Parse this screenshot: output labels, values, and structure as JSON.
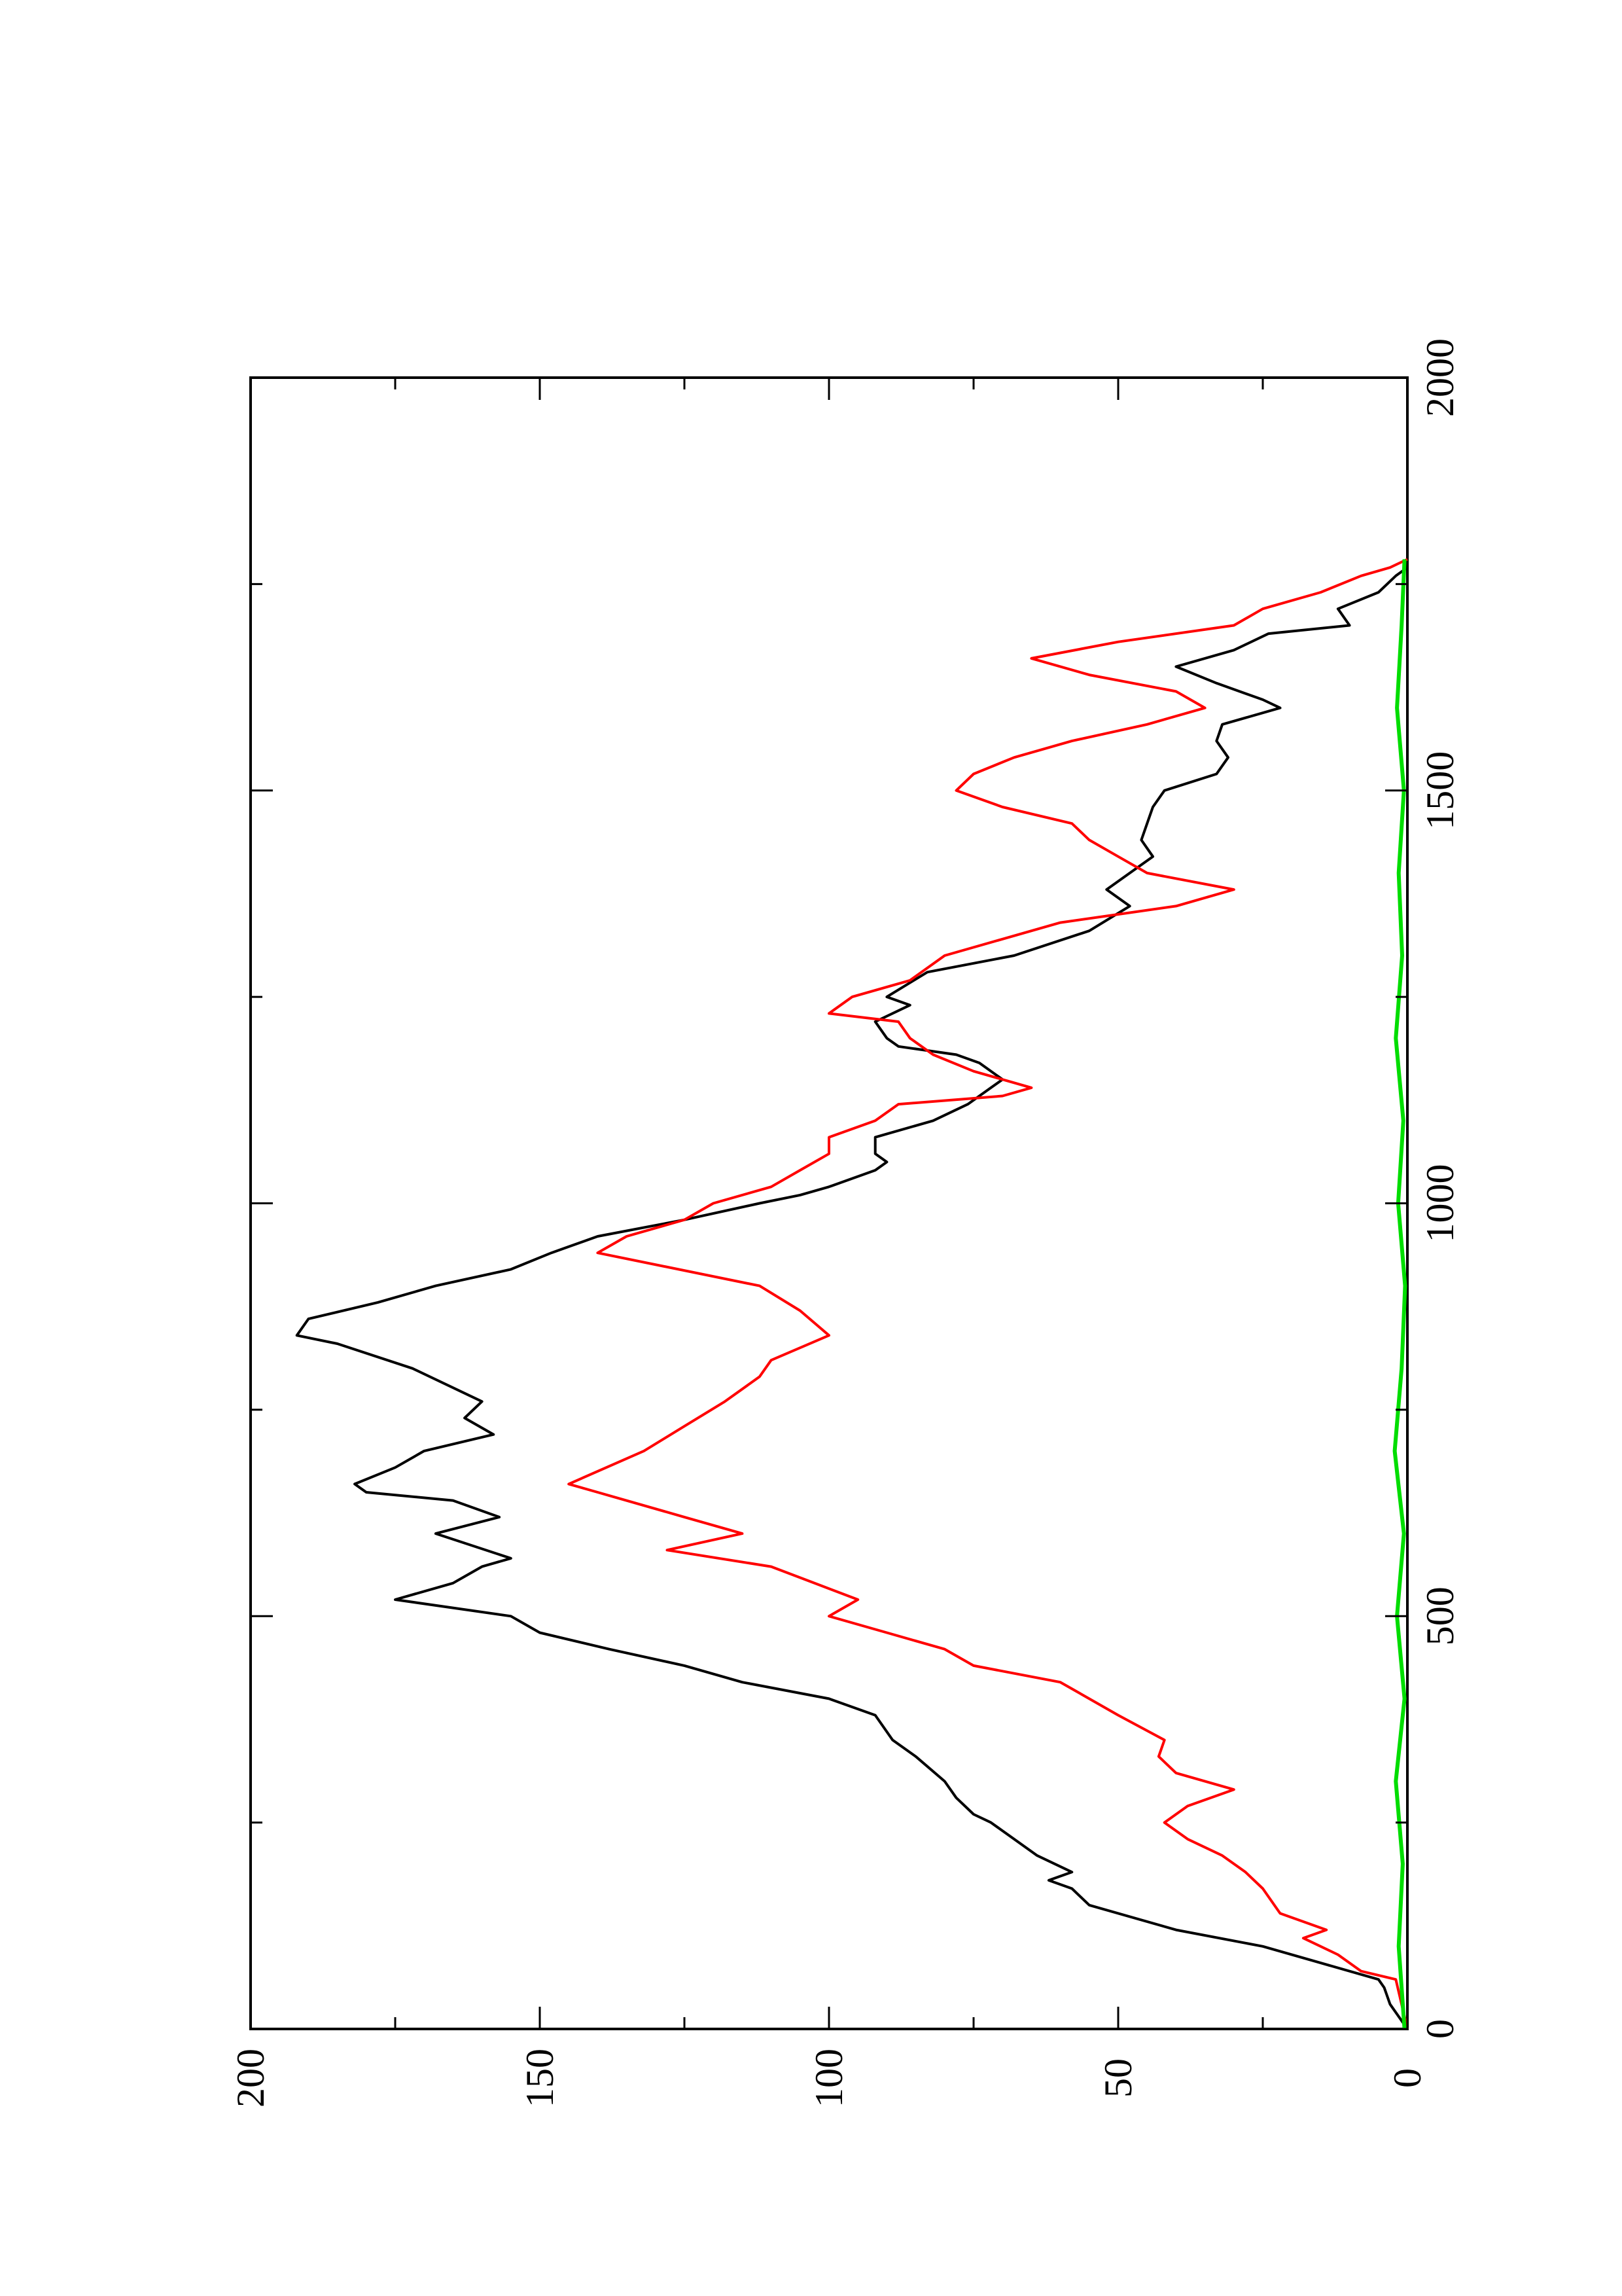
{
  "chart_data": {
    "type": "line",
    "orientation": "rotated-90-ccw",
    "title": "",
    "xlabel": "",
    "ylabel": "",
    "xlim": [
      0,
      2000
    ],
    "ylim": [
      0,
      200
    ],
    "x_ticks": [
      "0",
      "500",
      "1000",
      "1500",
      "2000"
    ],
    "y_ticks": [
      "0",
      "50",
      "100",
      "150",
      "200"
    ],
    "x_tick_values": [
      0,
      500,
      1000,
      1500,
      2000
    ],
    "y_tick_values": [
      0,
      50,
      100,
      150,
      200
    ],
    "x_minor_ticks": [
      250,
      750,
      1250,
      1750
    ],
    "y_minor_ticks": [
      25,
      75,
      125,
      175
    ],
    "grid": false,
    "legend": "none",
    "series": [
      {
        "color": "#000000",
        "points": [
          [
            0,
            0
          ],
          [
            30,
            3
          ],
          [
            50,
            4
          ],
          [
            60,
            5
          ],
          [
            80,
            15
          ],
          [
            100,
            25
          ],
          [
            120,
            40
          ],
          [
            150,
            55
          ],
          [
            170,
            58
          ],
          [
            180,
            62
          ],
          [
            190,
            58
          ],
          [
            210,
            64
          ],
          [
            230,
            68
          ],
          [
            250,
            72
          ],
          [
            260,
            75
          ],
          [
            280,
            78
          ],
          [
            300,
            80
          ],
          [
            330,
            85
          ],
          [
            350,
            89
          ],
          [
            380,
            92
          ],
          [
            400,
            100
          ],
          [
            420,
            115
          ],
          [
            440,
            125
          ],
          [
            460,
            138
          ],
          [
            480,
            150
          ],
          [
            500,
            155
          ],
          [
            520,
            175
          ],
          [
            540,
            165
          ],
          [
            560,
            160
          ],
          [
            570,
            155
          ],
          [
            600,
            168
          ],
          [
            620,
            157
          ],
          [
            640,
            165
          ],
          [
            650,
            180
          ],
          [
            660,
            182
          ],
          [
            680,
            175
          ],
          [
            700,
            170
          ],
          [
            720,
            158
          ],
          [
            740,
            163
          ],
          [
            760,
            160
          ],
          [
            800,
            172
          ],
          [
            830,
            185
          ],
          [
            840,
            192
          ],
          [
            860,
            190
          ],
          [
            880,
            178
          ],
          [
            900,
            168
          ],
          [
            920,
            155
          ],
          [
            940,
            148
          ],
          [
            960,
            140
          ],
          [
            980,
            125
          ],
          [
            1000,
            112
          ],
          [
            1010,
            105
          ],
          [
            1020,
            100
          ],
          [
            1040,
            92
          ],
          [
            1050,
            90
          ],
          [
            1060,
            92
          ],
          [
            1080,
            92
          ],
          [
            1100,
            82
          ],
          [
            1120,
            76
          ],
          [
            1140,
            72
          ],
          [
            1150,
            70
          ],
          [
            1170,
            74
          ],
          [
            1180,
            78
          ],
          [
            1190,
            88
          ],
          [
            1200,
            90
          ],
          [
            1220,
            92
          ],
          [
            1240,
            86
          ],
          [
            1250,
            90
          ],
          [
            1280,
            83
          ],
          [
            1300,
            68
          ],
          [
            1330,
            55
          ],
          [
            1360,
            48
          ],
          [
            1380,
            52
          ],
          [
            1400,
            48
          ],
          [
            1420,
            44
          ],
          [
            1440,
            46
          ],
          [
            1460,
            45
          ],
          [
            1480,
            44
          ],
          [
            1500,
            42
          ],
          [
            1520,
            33
          ],
          [
            1540,
            31
          ],
          [
            1560,
            33
          ],
          [
            1580,
            32
          ],
          [
            1600,
            22
          ],
          [
            1610,
            25
          ],
          [
            1630,
            33
          ],
          [
            1650,
            40
          ],
          [
            1670,
            30
          ],
          [
            1690,
            24
          ],
          [
            1700,
            10
          ],
          [
            1720,
            12
          ],
          [
            1740,
            5
          ],
          [
            1760,
            2
          ],
          [
            1770,
            0
          ]
        ]
      },
      {
        "color": "#ff0000",
        "points": [
          [
            0,
            0
          ],
          [
            60,
            2
          ],
          [
            70,
            8
          ],
          [
            90,
            12
          ],
          [
            110,
            18
          ],
          [
            120,
            14
          ],
          [
            140,
            22
          ],
          [
            170,
            25
          ],
          [
            190,
            28
          ],
          [
            210,
            32
          ],
          [
            230,
            38
          ],
          [
            250,
            42
          ],
          [
            270,
            38
          ],
          [
            290,
            30
          ],
          [
            310,
            40
          ],
          [
            330,
            43
          ],
          [
            350,
            42
          ],
          [
            380,
            50
          ],
          [
            420,
            60
          ],
          [
            440,
            75
          ],
          [
            460,
            80
          ],
          [
            480,
            90
          ],
          [
            500,
            100
          ],
          [
            520,
            95
          ],
          [
            560,
            110
          ],
          [
            580,
            128
          ],
          [
            600,
            115
          ],
          [
            620,
            125
          ],
          [
            650,
            140
          ],
          [
            660,
            145
          ],
          [
            700,
            132
          ],
          [
            730,
            125
          ],
          [
            760,
            118
          ],
          [
            790,
            112
          ],
          [
            810,
            110
          ],
          [
            840,
            100
          ],
          [
            870,
            105
          ],
          [
            900,
            112
          ],
          [
            940,
            140
          ],
          [
            960,
            135
          ],
          [
            980,
            125
          ],
          [
            1000,
            120
          ],
          [
            1020,
            110
          ],
          [
            1040,
            105
          ],
          [
            1060,
            100
          ],
          [
            1080,
            100
          ],
          [
            1100,
            92
          ],
          [
            1120,
            88
          ],
          [
            1130,
            70
          ],
          [
            1140,
            65
          ],
          [
            1160,
            75
          ],
          [
            1180,
            82
          ],
          [
            1200,
            86
          ],
          [
            1220,
            88
          ],
          [
            1230,
            100
          ],
          [
            1250,
            96
          ],
          [
            1270,
            86
          ],
          [
            1300,
            80
          ],
          [
            1320,
            70
          ],
          [
            1340,
            60
          ],
          [
            1360,
            40
          ],
          [
            1380,
            30
          ],
          [
            1400,
            45
          ],
          [
            1420,
            50
          ],
          [
            1440,
            55
          ],
          [
            1460,
            58
          ],
          [
            1480,
            70
          ],
          [
            1500,
            78
          ],
          [
            1520,
            75
          ],
          [
            1540,
            68
          ],
          [
            1560,
            58
          ],
          [
            1580,
            45
          ],
          [
            1600,
            35
          ],
          [
            1620,
            40
          ],
          [
            1640,
            55
          ],
          [
            1660,
            65
          ],
          [
            1680,
            50
          ],
          [
            1700,
            30
          ],
          [
            1720,
            25
          ],
          [
            1740,
            15
          ],
          [
            1760,
            8
          ],
          [
            1770,
            3
          ],
          [
            1780,
            0
          ]
        ]
      },
      {
        "color": "#00dd00",
        "points": [
          [
            0,
            0.5
          ],
          [
            100,
            1.5
          ],
          [
            200,
            0.8
          ],
          [
            300,
            2.0
          ],
          [
            400,
            0.5
          ],
          [
            500,
            1.8
          ],
          [
            600,
            0.6
          ],
          [
            700,
            2.2
          ],
          [
            800,
            1.0
          ],
          [
            900,
            0.4
          ],
          [
            1000,
            1.6
          ],
          [
            1100,
            0.7
          ],
          [
            1200,
            2.0
          ],
          [
            1300,
            0.9
          ],
          [
            1400,
            1.5
          ],
          [
            1500,
            0.6
          ],
          [
            1600,
            1.8
          ],
          [
            1700,
            1.0
          ],
          [
            1780,
            0.5
          ]
        ]
      }
    ]
  }
}
